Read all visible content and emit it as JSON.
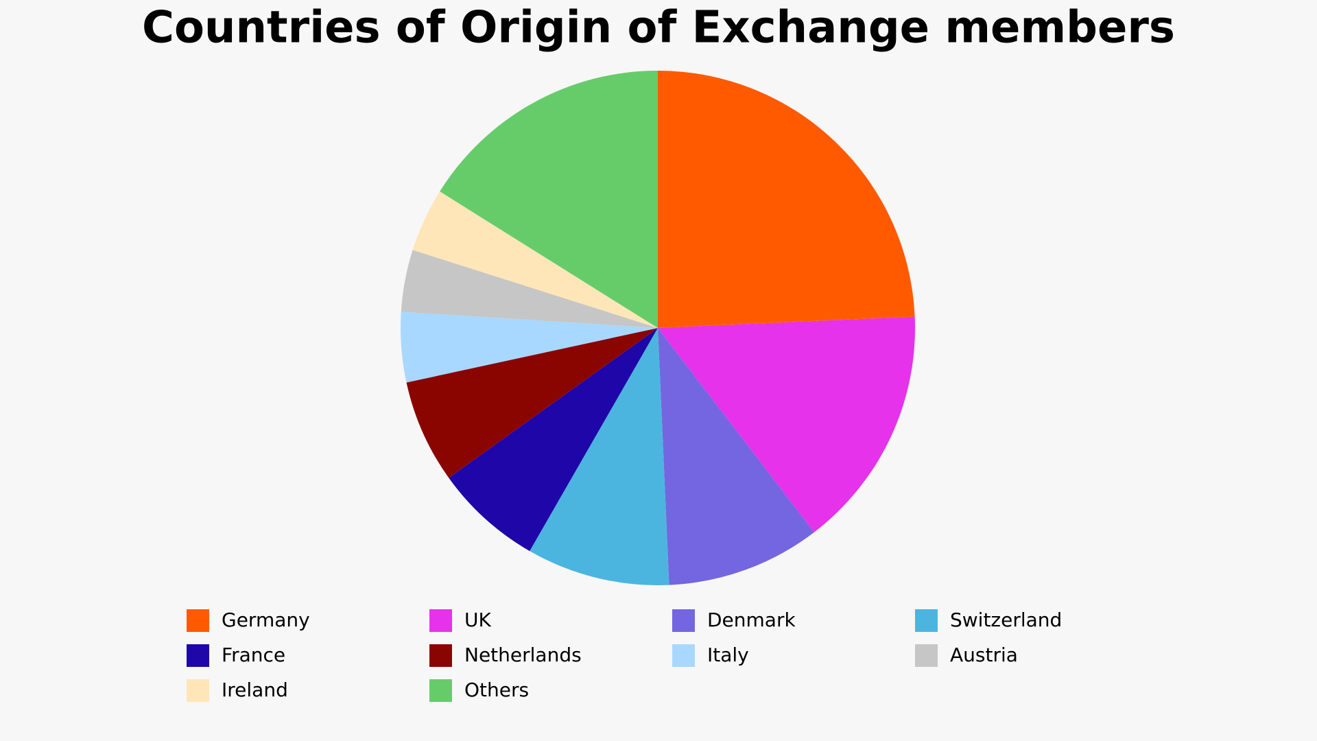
{
  "chart_data": {
    "type": "pie",
    "title": "Countries of Origin of Exchange members",
    "categories": [
      "Germany",
      "UK",
      "Denmark",
      "Switzerland",
      "France",
      "Netherlands",
      "Italy",
      "Austria",
      "Ireland",
      "Others"
    ],
    "values": [
      24.3,
      15.3,
      9.7,
      9,
      6.8,
      6.5,
      4.4,
      3.9,
      4,
      16.1
    ],
    "colors": [
      "#ff5a00",
      "#e632ea",
      "#7466e0",
      "#4bb5e0",
      "#1e06a8",
      "#8b0500",
      "#a8d8ff",
      "#c6c6c6",
      "#ffe6b8",
      "#66cc6a"
    ]
  }
}
